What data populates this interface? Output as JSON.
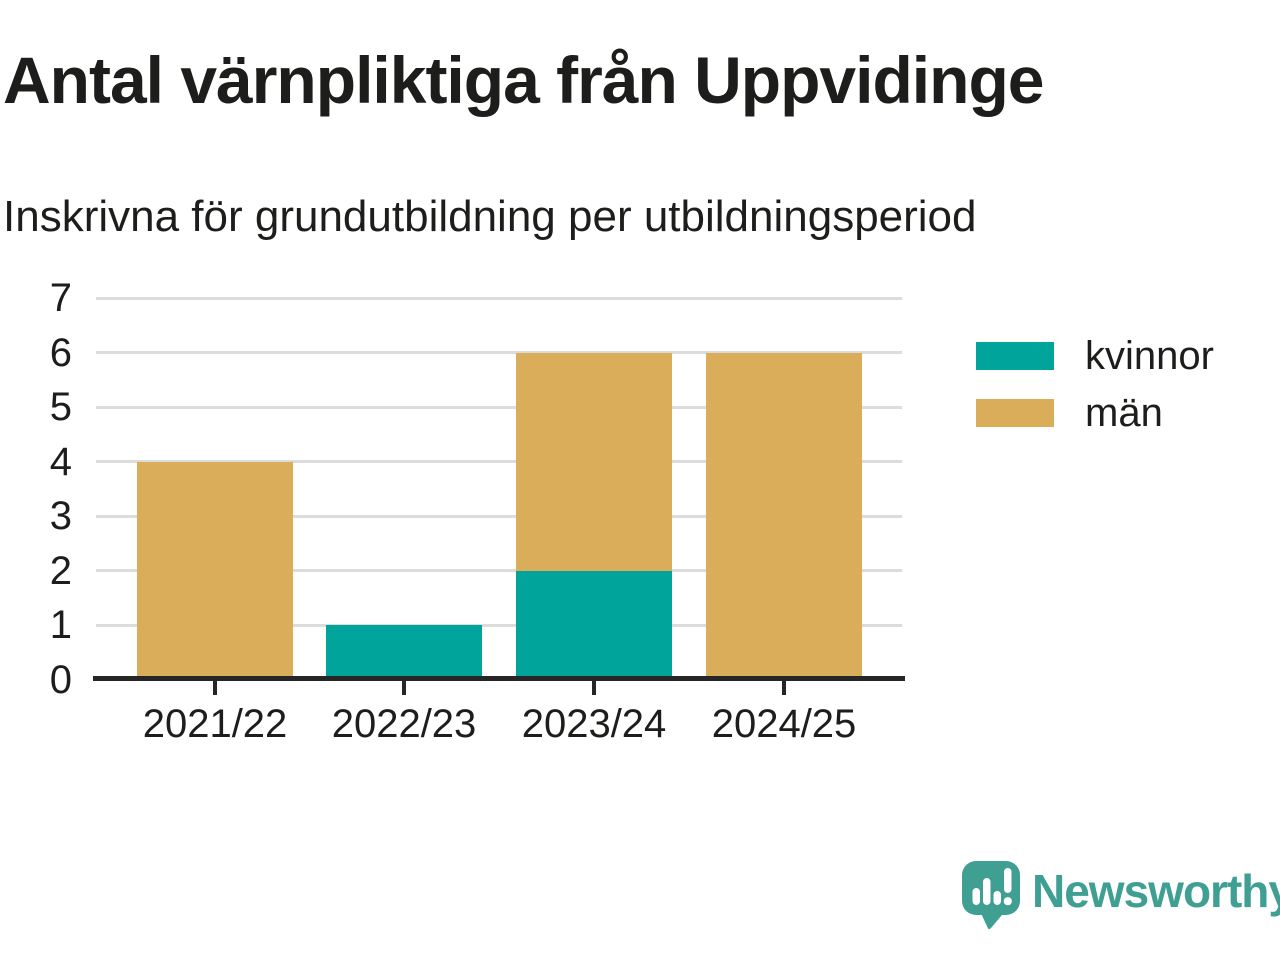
{
  "header": {
    "title": "Antal värnpliktiga från Uppvidinge",
    "subtitle": "Inskrivna för grundutbildning per utbildningsperiod"
  },
  "chart_data": {
    "type": "bar",
    "stacked": true,
    "title": "Antal värnpliktiga från Uppvidinge",
    "subtitle": "Inskrivna för grundutbildning per utbildningsperiod",
    "categories": [
      "2021/22",
      "2022/23",
      "2023/24",
      "2024/25"
    ],
    "series": [
      {
        "name": "kvinnor",
        "color": "#00a49b",
        "values": [
          0,
          1,
          2,
          0
        ]
      },
      {
        "name": "män",
        "color": "#d9ad5a",
        "values": [
          4,
          0,
          4,
          6
        ]
      }
    ],
    "totals": [
      4,
      1,
      6,
      6
    ],
    "xlabel": "",
    "ylabel": "",
    "ylim": [
      0,
      7
    ],
    "yticks": [
      0,
      1,
      2,
      3,
      4,
      5,
      6,
      7
    ],
    "grid": "horizontal",
    "grid_color": "#dcdcdc",
    "axis_color": "#262626",
    "text_color": "#1d1d1b",
    "legend_position": "right"
  },
  "footer": {
    "brand": "Newsworthy",
    "brand_color": "#3f9f92",
    "logo_icon": "newsworthy-speech-bubble-chart-icon"
  }
}
